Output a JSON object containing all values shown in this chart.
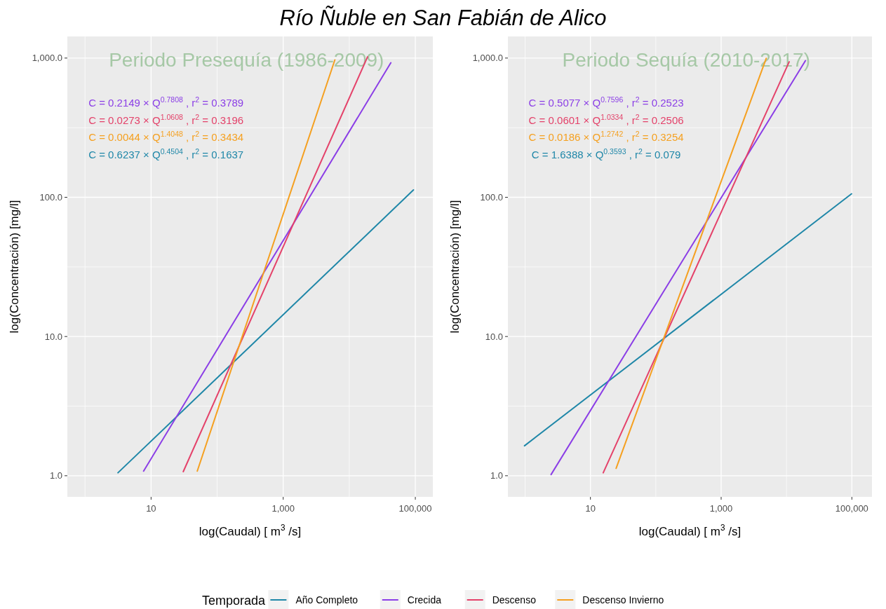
{
  "chart_data": [
    {
      "type": "line",
      "title": "Río Ñuble en San Fabián de Alico",
      "xlabel": "log(Caudal) [ m$^{3}$ /s]",
      "ylabel": "log(Concentración) [mg/l]",
      "legend_title": "Temporada",
      "legend": "bottom",
      "log": "xy",
      "grid": true,
      "marker": "none",
      "line_style": "solid",
      "xlim": [
        0.54,
        184000
      ],
      "ylim": [
        0.705,
        1430
      ],
      "xticks": [
        {
          "value": 1,
          "label": null
        },
        {
          "value": 10,
          "label": "10"
        },
        {
          "value": 100,
          "label": null
        },
        {
          "value": 1000,
          "label": "1,000"
        },
        {
          "value": 10000,
          "label": null
        },
        {
          "value": 100000,
          "label": "100,000"
        }
      ],
      "yticks": [
        {
          "value": 1,
          "label": "1.0"
        },
        {
          "value": 3.162,
          "label": null
        },
        {
          "value": 10,
          "label": "10.0"
        },
        {
          "value": 31.62,
          "label": null
        },
        {
          "value": 100,
          "label": "100.0"
        },
        {
          "value": 316.2,
          "label": null
        },
        {
          "value": 1000,
          "label": "1,000.0"
        }
      ],
      "annotations": [
        "Periodo Presequía (1986-2009)",
        "C = 0.2149 × Q$^{0.7808}$ , r$^{2}$ = 0.3789",
        "C = 0.0273 × Q$^{1.0608}$ , r$^{2}$ = 0.3196",
        "C = 0.0044 × Q$^{1.4048}$ , r$^{2}$ = 0.3434",
        "C = 0.6237 × Q$^{0.4504}$ , r$^{2}$ = 0.1637"
      ],
      "series": [
        {
          "name": "Año Completo",
          "color": "#1f87a8",
          "x": [
            3.15,
            175,
            93700
          ],
          "values": [
            1.05,
            6.5,
            113
          ]
        },
        {
          "name": "Crecida",
          "color": "#8b3ee6",
          "x": [
            7.7,
            42600
          ],
          "values": [
            1.08,
            925
          ]
        },
        {
          "name": "Descenso",
          "color": "#e4426a",
          "x": [
            30.7,
            18900
          ],
          "values": [
            1.07,
            1020
          ]
        },
        {
          "name": "Descenso Invierno",
          "color": "#f5a020",
          "x": [
            50,
            175,
            6050
          ],
          "values": [
            1.08,
            6.4,
            970
          ]
        }
      ]
    },
    {
      "type": "line",
      "xlabel": "log(Caudal) [ m$^{3}$ /s]",
      "ylabel": "log(Concentración) [mg/l]",
      "log": "xy",
      "grid": true,
      "marker": "none",
      "line_style": "solid",
      "xlim": [
        0.546,
        203000
      ],
      "ylim": [
        0.705,
        1430
      ],
      "xticks": [
        {
          "value": 1,
          "label": null
        },
        {
          "value": 10,
          "label": "10"
        },
        {
          "value": 100,
          "label": null
        },
        {
          "value": 1000,
          "label": "1,000"
        },
        {
          "value": 10000,
          "label": null
        },
        {
          "value": 100000,
          "label": "100,000"
        }
      ],
      "yticks": [
        {
          "value": 1,
          "label": "1.0"
        },
        {
          "value": 3.162,
          "label": null
        },
        {
          "value": 10,
          "label": "10.0"
        },
        {
          "value": 31.62,
          "label": null
        },
        {
          "value": 100,
          "label": "100.0"
        },
        {
          "value": 316.2,
          "label": null
        },
        {
          "value": 1000,
          "label": "1,000.0"
        }
      ],
      "annotations": [
        "Periodo Sequía (2010-2017)",
        "C = 0.5077 × Q$^{0.7596}$ , r$^{2}$ = 0.2523",
        "C = 0.0601 × Q$^{1.0334}$ , r$^{2}$ = 0.2506",
        "C = 0.0186 × Q$^{1.2742}$ , r$^{2}$ = 0.3254",
        "C = 1.6388 × Q$^{0.3593}$ , r$^{2}$ = 0.079"
      ],
      "series": [
        {
          "name": "Año Completo",
          "color": "#1f87a8",
          "x": [
            0.98,
            99000
          ],
          "values": [
            1.64,
            106
          ]
        },
        {
          "name": "Crecida",
          "color": "#8b3ee6",
          "x": [
            2.5,
            19500
          ],
          "values": [
            1.02,
            958
          ]
        },
        {
          "name": "Descenso",
          "color": "#e4426a",
          "x": [
            15.7,
            11000
          ],
          "values": [
            1.05,
            940
          ]
        },
        {
          "name": "Descenso Invierno",
          "color": "#f5a020",
          "x": [
            24.7,
            4890
          ],
          "values": [
            1.13,
            995
          ]
        }
      ]
    }
  ]
}
